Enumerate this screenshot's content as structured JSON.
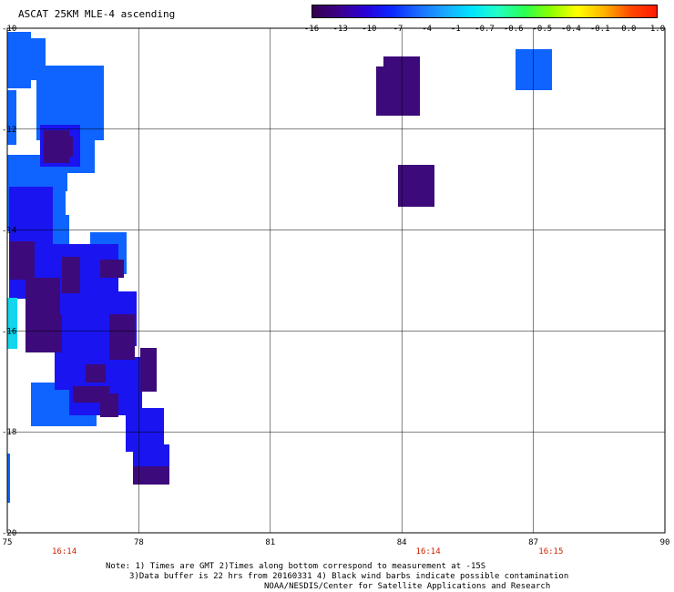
{
  "title": "ASCAT 25KM MLE-4 ascending",
  "colorbar": {
    "colors": [
      "#35004e",
      "#3b008a",
      "#2a00d8",
      "#0a28ff",
      "#1a6bff",
      "#1aa8ff",
      "#00e4ff",
      "#22ffc6",
      "#2aff52",
      "#8cff00",
      "#ffff00",
      "#ffb400",
      "#ff4a00",
      "#ff1800"
    ],
    "labels": [
      "-16",
      "-13",
      "-10",
      "-7",
      "-4",
      "-1",
      "-0.7",
      "-0.6",
      "-0.5",
      "-0.4",
      "-0.1",
      "0.0",
      "1.0"
    ]
  },
  "axes": {
    "lon_ticks": [
      "75",
      "78",
      "81",
      "84",
      "87",
      "90"
    ],
    "lat_ticks": [
      "-10",
      "-12",
      "-14",
      "-16",
      "-18",
      "-20"
    ]
  },
  "times": [
    {
      "lon": 76.3,
      "label": "16:14"
    },
    {
      "lon": 84.6,
      "label": "16:14"
    },
    {
      "lon": 87.4,
      "label": "16:15"
    }
  ],
  "notes": {
    "line1": "Note: 1) Times are GMT 2)Times along bottom correspond to measurement at -15S",
    "line2": "3)Data buffer is 22 hrs from 20160331 4) Black wind barbs indicate possible contamination",
    "line3": "NOAA/NESDIS/Center for Satellite Applications and Research"
  },
  "swath_colors": {
    "dark": "#3c0a7a",
    "blue": "#1a14f0",
    "light": "#0f64ff",
    "cyan": "#11d6ee"
  }
}
